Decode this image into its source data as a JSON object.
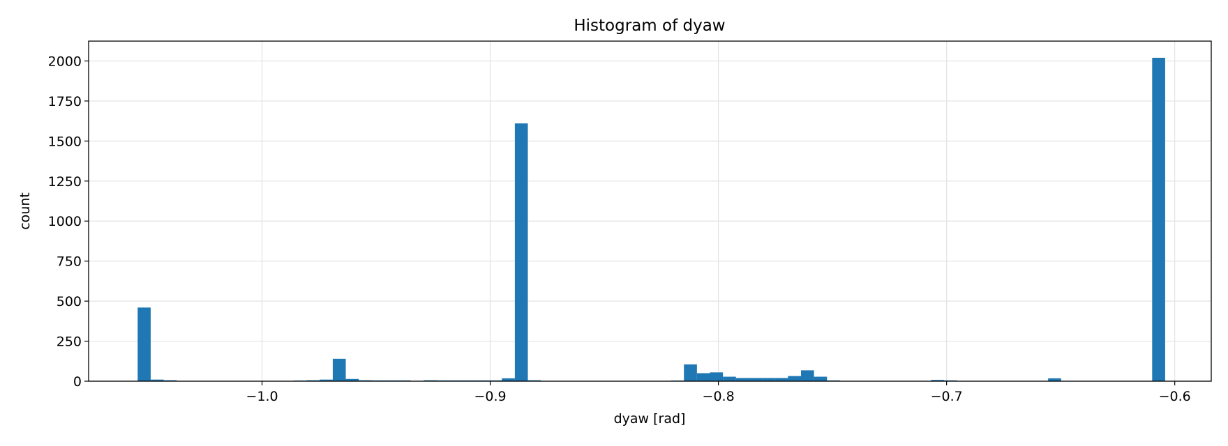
{
  "chart_data": {
    "type": "bar",
    "title": "Histogram of dyaw",
    "xlabel": "dyaw [rad]",
    "ylabel": "count",
    "xlim": [
      -1.076,
      -0.584
    ],
    "ylim": [
      0,
      2124
    ],
    "grid": true,
    "bar_color": "#1f77b4",
    "x_ticks": [
      {
        "value": -1.0,
        "label": "−1.0"
      },
      {
        "value": -0.9,
        "label": "−0.9"
      },
      {
        "value": -0.8,
        "label": "−0.8"
      },
      {
        "value": -0.7,
        "label": "−0.7"
      },
      {
        "value": -0.6,
        "label": "−0.6"
      }
    ],
    "y_ticks": [
      {
        "value": 0,
        "label": "0"
      },
      {
        "value": 250,
        "label": "250"
      },
      {
        "value": 500,
        "label": "500"
      },
      {
        "value": 750,
        "label": "750"
      },
      {
        "value": 1000,
        "label": "1000"
      },
      {
        "value": 1250,
        "label": "1250"
      },
      {
        "value": 1500,
        "label": "1500"
      },
      {
        "value": 1750,
        "label": "1750"
      },
      {
        "value": 2000,
        "label": "2000"
      }
    ],
    "bins": [
      {
        "x0": -1.0545,
        "x1": -1.0488,
        "count": 460
      },
      {
        "x0": -1.0488,
        "x1": -1.0431,
        "count": 10
      },
      {
        "x0": -1.0431,
        "x1": -1.0374,
        "count": 6
      },
      {
        "x0": -0.9861,
        "x1": -0.9804,
        "count": 4
      },
      {
        "x0": -0.9804,
        "x1": -0.9747,
        "count": 6
      },
      {
        "x0": -0.9747,
        "x1": -0.969,
        "count": 10
      },
      {
        "x0": -0.969,
        "x1": -0.9633,
        "count": 140
      },
      {
        "x0": -0.9633,
        "x1": -0.9576,
        "count": 14
      },
      {
        "x0": -0.9576,
        "x1": -0.9519,
        "count": 6
      },
      {
        "x0": -0.9519,
        "x1": -0.9462,
        "count": 5
      },
      {
        "x0": -0.9462,
        "x1": -0.9405,
        "count": 5
      },
      {
        "x0": -0.9405,
        "x1": -0.9348,
        "count": 5
      },
      {
        "x0": -0.9291,
        "x1": -0.9234,
        "count": 6
      },
      {
        "x0": -0.9234,
        "x1": -0.9177,
        "count": 5
      },
      {
        "x0": -0.9177,
        "x1": -0.912,
        "count": 5
      },
      {
        "x0": -0.912,
        "x1": -0.9063,
        "count": 5
      },
      {
        "x0": -0.9063,
        "x1": -0.9006,
        "count": 5
      },
      {
        "x0": -0.9006,
        "x1": -0.8949,
        "count": 5
      },
      {
        "x0": -0.8949,
        "x1": -0.8892,
        "count": 18
      },
      {
        "x0": -0.8892,
        "x1": -0.8835,
        "count": 1610
      },
      {
        "x0": -0.8835,
        "x1": -0.8778,
        "count": 6
      },
      {
        "x0": -0.8208,
        "x1": -0.8151,
        "count": 4
      },
      {
        "x0": -0.8151,
        "x1": -0.8094,
        "count": 105
      },
      {
        "x0": -0.8094,
        "x1": -0.8037,
        "count": 50
      },
      {
        "x0": -0.8037,
        "x1": -0.798,
        "count": 55
      },
      {
        "x0": -0.798,
        "x1": -0.7923,
        "count": 28
      },
      {
        "x0": -0.7923,
        "x1": -0.7866,
        "count": 20
      },
      {
        "x0": -0.7866,
        "x1": -0.7809,
        "count": 20
      },
      {
        "x0": -0.7809,
        "x1": -0.7752,
        "count": 20
      },
      {
        "x0": -0.7752,
        "x1": -0.7695,
        "count": 20
      },
      {
        "x0": -0.7695,
        "x1": -0.7638,
        "count": 32
      },
      {
        "x0": -0.7638,
        "x1": -0.7581,
        "count": 68
      },
      {
        "x0": -0.7581,
        "x1": -0.7524,
        "count": 28
      },
      {
        "x0": -0.7524,
        "x1": -0.7467,
        "count": 5
      },
      {
        "x0": -0.7068,
        "x1": -0.7011,
        "count": 8
      },
      {
        "x0": -0.7011,
        "x1": -0.6954,
        "count": 5
      },
      {
        "x0": -0.6555,
        "x1": -0.6498,
        "count": 18
      },
      {
        "x0": -0.6099,
        "x1": -0.6042,
        "count": 2020
      }
    ]
  }
}
